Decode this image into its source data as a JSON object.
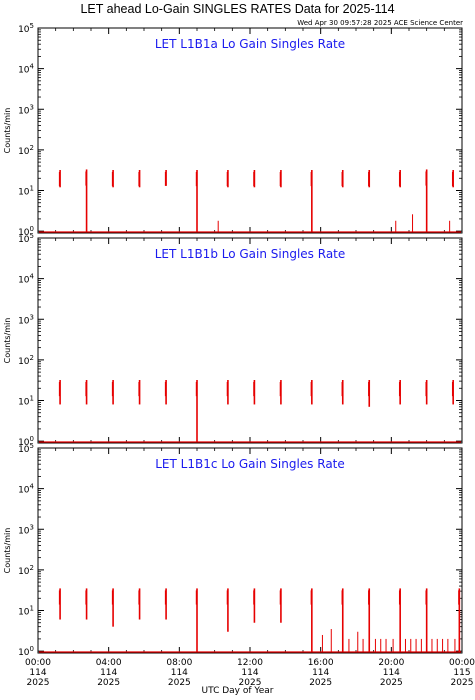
{
  "header": {
    "title": "LET ahead Lo-Gain SINGLES RATES Data for 2025-114",
    "timestamp": "Wed Apr 30 09:57:28 2025 ACE Science Center"
  },
  "colors": {
    "panel_title": "#1a1aee",
    "data": "#e60000",
    "axis": "#000000"
  },
  "chart_data": [
    {
      "type": "line",
      "title": "LET L1B1a Lo Gain Singles Rate",
      "ylabel": "Counts/min",
      "yscale": "log",
      "ylim": [
        0.9,
        100000
      ],
      "yticks": [
        {
          "exp": "0"
        },
        {
          "exp": "1"
        },
        {
          "exp": "2"
        },
        {
          "exp": "3"
        },
        {
          "exp": "4"
        },
        {
          "exp": "5"
        }
      ],
      "xlim": [
        0,
        24
      ],
      "baseline": 0.9,
      "bursts": [
        {
          "x": 1.25,
          "low": 12,
          "high": 32
        },
        {
          "x": 2.75,
          "low": 0.9,
          "high": 33
        },
        {
          "x": 4.25,
          "low": 12,
          "high": 32
        },
        {
          "x": 5.75,
          "low": 12,
          "high": 32
        },
        {
          "x": 7.25,
          "low": 13,
          "high": 32
        },
        {
          "x": 9.0,
          "low": 0.9,
          "high": 32
        },
        {
          "x": 10.75,
          "low": 12,
          "high": 32
        },
        {
          "x": 12.25,
          "low": 12,
          "high": 32
        },
        {
          "x": 13.75,
          "low": 12,
          "high": 32
        },
        {
          "x": 15.5,
          "low": 0.9,
          "high": 32
        },
        {
          "x": 17.25,
          "low": 12,
          "high": 32
        },
        {
          "x": 18.75,
          "low": 12,
          "high": 32
        },
        {
          "x": 20.5,
          "low": 12,
          "high": 32
        },
        {
          "x": 22.0,
          "low": 0.9,
          "high": 33
        },
        {
          "x": 23.5,
          "low": 12,
          "high": 32
        }
      ],
      "spikes": [
        {
          "x": 10.2,
          "y": 1.8
        },
        {
          "x": 20.25,
          "y": 1.8
        },
        {
          "x": 21.2,
          "y": 2.6
        },
        {
          "x": 23.3,
          "y": 1.8
        }
      ]
    },
    {
      "type": "line",
      "title": "LET L1B1b Lo Gain Singles Rate",
      "ylabel": "Counts/min",
      "yscale": "log",
      "ylim": [
        0.9,
        100000
      ],
      "yticks": [
        {
          "exp": "0"
        },
        {
          "exp": "1"
        },
        {
          "exp": "2"
        },
        {
          "exp": "3"
        },
        {
          "exp": "4"
        },
        {
          "exp": "5"
        }
      ],
      "xlim": [
        0,
        24
      ],
      "baseline": 0.9,
      "bursts": [
        {
          "x": 1.25,
          "low": 8,
          "high": 32
        },
        {
          "x": 2.75,
          "low": 8,
          "high": 32
        },
        {
          "x": 4.25,
          "low": 8,
          "high": 32
        },
        {
          "x": 5.75,
          "low": 8,
          "high": 32
        },
        {
          "x": 7.25,
          "low": 8,
          "high": 32
        },
        {
          "x": 9.0,
          "low": 0.9,
          "high": 32
        },
        {
          "x": 10.75,
          "low": 8,
          "high": 32
        },
        {
          "x": 12.25,
          "low": 8,
          "high": 32
        },
        {
          "x": 13.75,
          "low": 8,
          "high": 32
        },
        {
          "x": 15.5,
          "low": 8,
          "high": 32
        },
        {
          "x": 17.25,
          "low": 8,
          "high": 32
        },
        {
          "x": 18.75,
          "low": 7,
          "high": 32
        },
        {
          "x": 20.5,
          "low": 8,
          "high": 32
        },
        {
          "x": 22.0,
          "low": 8,
          "high": 32
        },
        {
          "x": 23.5,
          "low": 8,
          "high": 32
        }
      ],
      "spikes": []
    },
    {
      "type": "line",
      "title": "LET L1B1c Lo Gain Singles Rate",
      "ylabel": "Counts/min",
      "yscale": "log",
      "ylim": [
        0.9,
        100000
      ],
      "yticks": [
        {
          "exp": "0"
        },
        {
          "exp": "1"
        },
        {
          "exp": "2"
        },
        {
          "exp": "3"
        },
        {
          "exp": "4"
        },
        {
          "exp": "5"
        }
      ],
      "xlim": [
        0,
        24
      ],
      "baseline": 0.9,
      "bursts": [
        {
          "x": 1.25,
          "low": 6,
          "high": 35
        },
        {
          "x": 2.75,
          "low": 6,
          "high": 35
        },
        {
          "x": 4.25,
          "low": 4,
          "high": 35
        },
        {
          "x": 5.75,
          "low": 6,
          "high": 35
        },
        {
          "x": 7.25,
          "low": 6,
          "high": 35
        },
        {
          "x": 9.0,
          "low": 0.9,
          "high": 35
        },
        {
          "x": 10.75,
          "low": 3,
          "high": 35
        },
        {
          "x": 12.25,
          "low": 5,
          "high": 35
        },
        {
          "x": 13.75,
          "low": 5,
          "high": 35
        },
        {
          "x": 15.5,
          "low": 0.9,
          "high": 35
        },
        {
          "x": 17.25,
          "low": 0.9,
          "high": 35
        },
        {
          "x": 18.75,
          "low": 0.9,
          "high": 35
        },
        {
          "x": 20.5,
          "low": 0.9,
          "high": 35
        },
        {
          "x": 22.0,
          "low": 0.9,
          "high": 35
        },
        {
          "x": 23.85,
          "low": 0.9,
          "high": 35
        }
      ],
      "spikes": [
        {
          "x": 16.1,
          "y": 2.5
        },
        {
          "x": 16.6,
          "y": 3.5
        },
        {
          "x": 17.6,
          "y": 2.0
        },
        {
          "x": 18.1,
          "y": 3.0
        },
        {
          "x": 18.4,
          "y": 2.0
        },
        {
          "x": 19.1,
          "y": 2.0
        },
        {
          "x": 19.4,
          "y": 2.0
        },
        {
          "x": 19.7,
          "y": 2.0
        },
        {
          "x": 20.1,
          "y": 2.0
        },
        {
          "x": 20.8,
          "y": 2.0
        },
        {
          "x": 21.1,
          "y": 2.0
        },
        {
          "x": 21.4,
          "y": 2.0
        },
        {
          "x": 21.7,
          "y": 2.0
        },
        {
          "x": 22.3,
          "y": 2.0
        },
        {
          "x": 22.6,
          "y": 2.0
        },
        {
          "x": 22.9,
          "y": 2.0
        },
        {
          "x": 23.2,
          "y": 2.0
        },
        {
          "x": 23.6,
          "y": 2.0
        }
      ]
    }
  ],
  "x_axis": {
    "label": "UTC Day of Year",
    "ticks": [
      {
        "hour": 0,
        "time": "00:00",
        "doy": "114",
        "year": "2025"
      },
      {
        "hour": 4,
        "time": "04:00",
        "doy": "114",
        "year": "2025"
      },
      {
        "hour": 8,
        "time": "08:00",
        "doy": "114",
        "year": "2025"
      },
      {
        "hour": 12,
        "time": "12:00",
        "doy": "114",
        "year": "2025"
      },
      {
        "hour": 16,
        "time": "16:00",
        "doy": "114",
        "year": "2025"
      },
      {
        "hour": 20,
        "time": "20:00",
        "doy": "114",
        "year": "2025"
      },
      {
        "hour": 24,
        "time": "00:00",
        "doy": "115",
        "year": "2025"
      }
    ]
  }
}
